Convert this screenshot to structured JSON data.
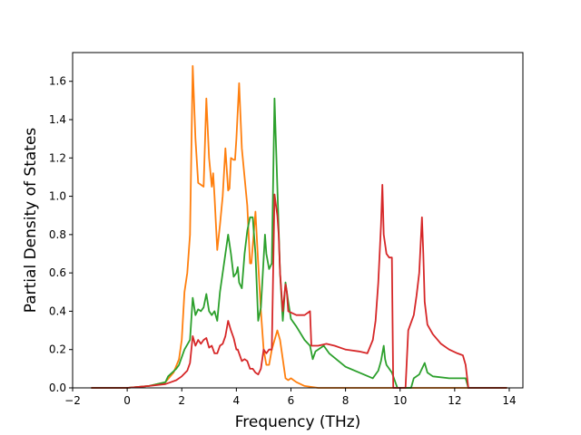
{
  "chart_data": {
    "type": "line",
    "title": "",
    "xlabel": "Frequency (THz)",
    "ylabel": "Partial Density of States",
    "xlim": [
      -2,
      14.5
    ],
    "ylim": [
      0,
      1.75
    ],
    "xticks": [
      -2,
      0,
      2,
      4,
      6,
      8,
      10,
      12,
      14
    ],
    "xtick_labels": [
      "−2",
      "0",
      "2",
      "4",
      "6",
      "8",
      "10",
      "12",
      "14"
    ],
    "yticks": [
      0.0,
      0.2,
      0.4,
      0.6,
      0.8,
      1.0,
      1.2,
      1.4,
      1.6
    ],
    "ytick_labels": [
      "0.0",
      "0.2",
      "0.4",
      "0.6",
      "0.8",
      "1.0",
      "1.2",
      "1.4",
      "1.6"
    ],
    "grid": false,
    "series": [
      {
        "color": "#ff7f0e",
        "points": [
          [
            -1.3,
            0
          ],
          [
            0,
            0
          ],
          [
            0.8,
            0.01
          ],
          [
            1.4,
            0.03
          ],
          [
            1.7,
            0.08
          ],
          [
            1.9,
            0.15
          ],
          [
            2.0,
            0.25
          ],
          [
            2.1,
            0.5
          ],
          [
            2.2,
            0.6
          ],
          [
            2.3,
            0.8
          ],
          [
            2.4,
            1.68
          ],
          [
            2.5,
            1.3
          ],
          [
            2.6,
            1.07
          ],
          [
            2.7,
            1.06
          ],
          [
            2.8,
            1.05
          ],
          [
            2.9,
            1.51
          ],
          [
            3.0,
            1.2
          ],
          [
            3.1,
            1.05
          ],
          [
            3.15,
            1.12
          ],
          [
            3.2,
            1.0
          ],
          [
            3.3,
            0.72
          ],
          [
            3.4,
            0.85
          ],
          [
            3.5,
            1.0
          ],
          [
            3.6,
            1.25
          ],
          [
            3.7,
            1.03
          ],
          [
            3.75,
            1.04
          ],
          [
            3.8,
            1.2
          ],
          [
            3.9,
            1.19
          ],
          [
            3.95,
            1.19
          ],
          [
            4.0,
            1.3
          ],
          [
            4.1,
            1.59
          ],
          [
            4.2,
            1.25
          ],
          [
            4.3,
            1.1
          ],
          [
            4.4,
            0.95
          ],
          [
            4.5,
            0.65
          ],
          [
            4.55,
            0.65
          ],
          [
            4.7,
            0.92
          ],
          [
            4.8,
            0.65
          ],
          [
            4.9,
            0.4
          ],
          [
            5.0,
            0.2
          ],
          [
            5.1,
            0.12
          ],
          [
            5.2,
            0.12
          ],
          [
            5.3,
            0.2
          ],
          [
            5.5,
            0.3
          ],
          [
            5.6,
            0.25
          ],
          [
            5.7,
            0.15
          ],
          [
            5.8,
            0.05
          ],
          [
            5.9,
            0.04
          ],
          [
            6.0,
            0.05
          ],
          [
            6.2,
            0.03
          ],
          [
            6.5,
            0.01
          ],
          [
            7.0,
            0
          ],
          [
            10.5,
            0
          ],
          [
            12.5,
            0
          ],
          [
            13.9,
            0
          ]
        ]
      },
      {
        "color": "#2ca02c",
        "points": [
          [
            -1.3,
            0
          ],
          [
            0,
            0
          ],
          [
            0.8,
            0.01
          ],
          [
            1.4,
            0.03
          ],
          [
            1.5,
            0.06
          ],
          [
            1.8,
            0.1
          ],
          [
            1.9,
            0.12
          ],
          [
            2.1,
            0.2
          ],
          [
            2.3,
            0.25
          ],
          [
            2.4,
            0.47
          ],
          [
            2.5,
            0.38
          ],
          [
            2.6,
            0.41
          ],
          [
            2.7,
            0.4
          ],
          [
            2.8,
            0.42
          ],
          [
            2.9,
            0.49
          ],
          [
            3.0,
            0.4
          ],
          [
            3.1,
            0.38
          ],
          [
            3.2,
            0.4
          ],
          [
            3.3,
            0.35
          ],
          [
            3.4,
            0.5
          ],
          [
            3.5,
            0.6
          ],
          [
            3.6,
            0.7
          ],
          [
            3.7,
            0.8
          ],
          [
            3.8,
            0.7
          ],
          [
            3.9,
            0.58
          ],
          [
            4.0,
            0.6
          ],
          [
            4.05,
            0.63
          ],
          [
            4.1,
            0.55
          ],
          [
            4.2,
            0.52
          ],
          [
            4.3,
            0.7
          ],
          [
            4.4,
            0.82
          ],
          [
            4.5,
            0.89
          ],
          [
            4.6,
            0.89
          ],
          [
            4.7,
            0.7
          ],
          [
            4.8,
            0.35
          ],
          [
            4.9,
            0.42
          ],
          [
            5.05,
            0.8
          ],
          [
            5.1,
            0.7
          ],
          [
            5.2,
            0.62
          ],
          [
            5.3,
            0.65
          ],
          [
            5.4,
            1.51
          ],
          [
            5.5,
            1.05
          ],
          [
            5.6,
            0.6
          ],
          [
            5.7,
            0.35
          ],
          [
            5.8,
            0.55
          ],
          [
            5.9,
            0.45
          ],
          [
            6.0,
            0.36
          ],
          [
            6.2,
            0.32
          ],
          [
            6.5,
            0.25
          ],
          [
            6.7,
            0.22
          ],
          [
            6.8,
            0.15
          ],
          [
            6.9,
            0.19
          ],
          [
            7.2,
            0.22
          ],
          [
            7.4,
            0.18
          ],
          [
            8.0,
            0.11
          ],
          [
            8.5,
            0.08
          ],
          [
            9.0,
            0.05
          ],
          [
            9.2,
            0.09
          ],
          [
            9.3,
            0.14
          ],
          [
            9.4,
            0.22
          ],
          [
            9.45,
            0.15
          ],
          [
            9.5,
            0.12
          ],
          [
            9.7,
            0.08
          ],
          [
            9.8,
            0.04
          ],
          [
            9.9,
            0.0
          ],
          [
            10.4,
            0
          ],
          [
            10.5,
            0.05
          ],
          [
            10.7,
            0.07
          ],
          [
            10.8,
            0.1
          ],
          [
            10.9,
            0.13
          ],
          [
            11.0,
            0.08
          ],
          [
            11.2,
            0.06
          ],
          [
            11.8,
            0.05
          ],
          [
            12.3,
            0.05
          ],
          [
            12.4,
            0.05
          ],
          [
            12.5,
            0.0
          ],
          [
            13.9,
            0
          ]
        ]
      },
      {
        "color": "#d62728",
        "points": [
          [
            -1.3,
            0
          ],
          [
            0,
            0
          ],
          [
            0.8,
            0.01
          ],
          [
            1.4,
            0.02
          ],
          [
            1.6,
            0.03
          ],
          [
            1.8,
            0.04
          ],
          [
            2.0,
            0.06
          ],
          [
            2.2,
            0.09
          ],
          [
            2.3,
            0.13
          ],
          [
            2.4,
            0.27
          ],
          [
            2.5,
            0.22
          ],
          [
            2.6,
            0.25
          ],
          [
            2.7,
            0.23
          ],
          [
            2.8,
            0.25
          ],
          [
            2.9,
            0.26
          ],
          [
            3.0,
            0.21
          ],
          [
            3.1,
            0.22
          ],
          [
            3.2,
            0.18
          ],
          [
            3.3,
            0.18
          ],
          [
            3.4,
            0.22
          ],
          [
            3.5,
            0.23
          ],
          [
            3.6,
            0.27
          ],
          [
            3.7,
            0.35
          ],
          [
            3.8,
            0.3
          ],
          [
            3.9,
            0.26
          ],
          [
            4.0,
            0.2
          ],
          [
            4.05,
            0.2
          ],
          [
            4.1,
            0.18
          ],
          [
            4.2,
            0.14
          ],
          [
            4.3,
            0.15
          ],
          [
            4.4,
            0.14
          ],
          [
            4.5,
            0.1
          ],
          [
            4.6,
            0.1
          ],
          [
            4.7,
            0.08
          ],
          [
            4.8,
            0.07
          ],
          [
            4.9,
            0.1
          ],
          [
            5.0,
            0.2
          ],
          [
            5.1,
            0.18
          ],
          [
            5.2,
            0.2
          ],
          [
            5.3,
            0.2
          ],
          [
            5.4,
            1.01
          ],
          [
            5.5,
            0.9
          ],
          [
            5.55,
            0.8
          ],
          [
            5.6,
            0.6
          ],
          [
            5.7,
            0.4
          ],
          [
            5.8,
            0.54
          ],
          [
            5.85,
            0.5
          ],
          [
            5.9,
            0.4
          ],
          [
            6.2,
            0.38
          ],
          [
            6.5,
            0.38
          ],
          [
            6.7,
            0.4
          ],
          [
            6.75,
            0.22
          ],
          [
            7.0,
            0.22
          ],
          [
            7.3,
            0.23
          ],
          [
            7.6,
            0.22
          ],
          [
            8.0,
            0.2
          ],
          [
            8.5,
            0.19
          ],
          [
            8.8,
            0.18
          ],
          [
            9.0,
            0.25
          ],
          [
            9.1,
            0.35
          ],
          [
            9.2,
            0.55
          ],
          [
            9.3,
            0.85
          ],
          [
            9.35,
            1.06
          ],
          [
            9.4,
            0.8
          ],
          [
            9.5,
            0.7
          ],
          [
            9.6,
            0.68
          ],
          [
            9.7,
            0.68
          ],
          [
            9.75,
            0.0
          ],
          [
            10.2,
            0.0
          ],
          [
            10.3,
            0.3
          ],
          [
            10.5,
            0.38
          ],
          [
            10.6,
            0.48
          ],
          [
            10.7,
            0.6
          ],
          [
            10.8,
            0.89
          ],
          [
            10.85,
            0.7
          ],
          [
            10.9,
            0.45
          ],
          [
            11.0,
            0.33
          ],
          [
            11.2,
            0.28
          ],
          [
            11.5,
            0.23
          ],
          [
            11.8,
            0.2
          ],
          [
            12.1,
            0.18
          ],
          [
            12.3,
            0.17
          ],
          [
            12.4,
            0.12
          ],
          [
            12.5,
            0.0
          ],
          [
            13.9,
            0
          ]
        ]
      }
    ]
  }
}
